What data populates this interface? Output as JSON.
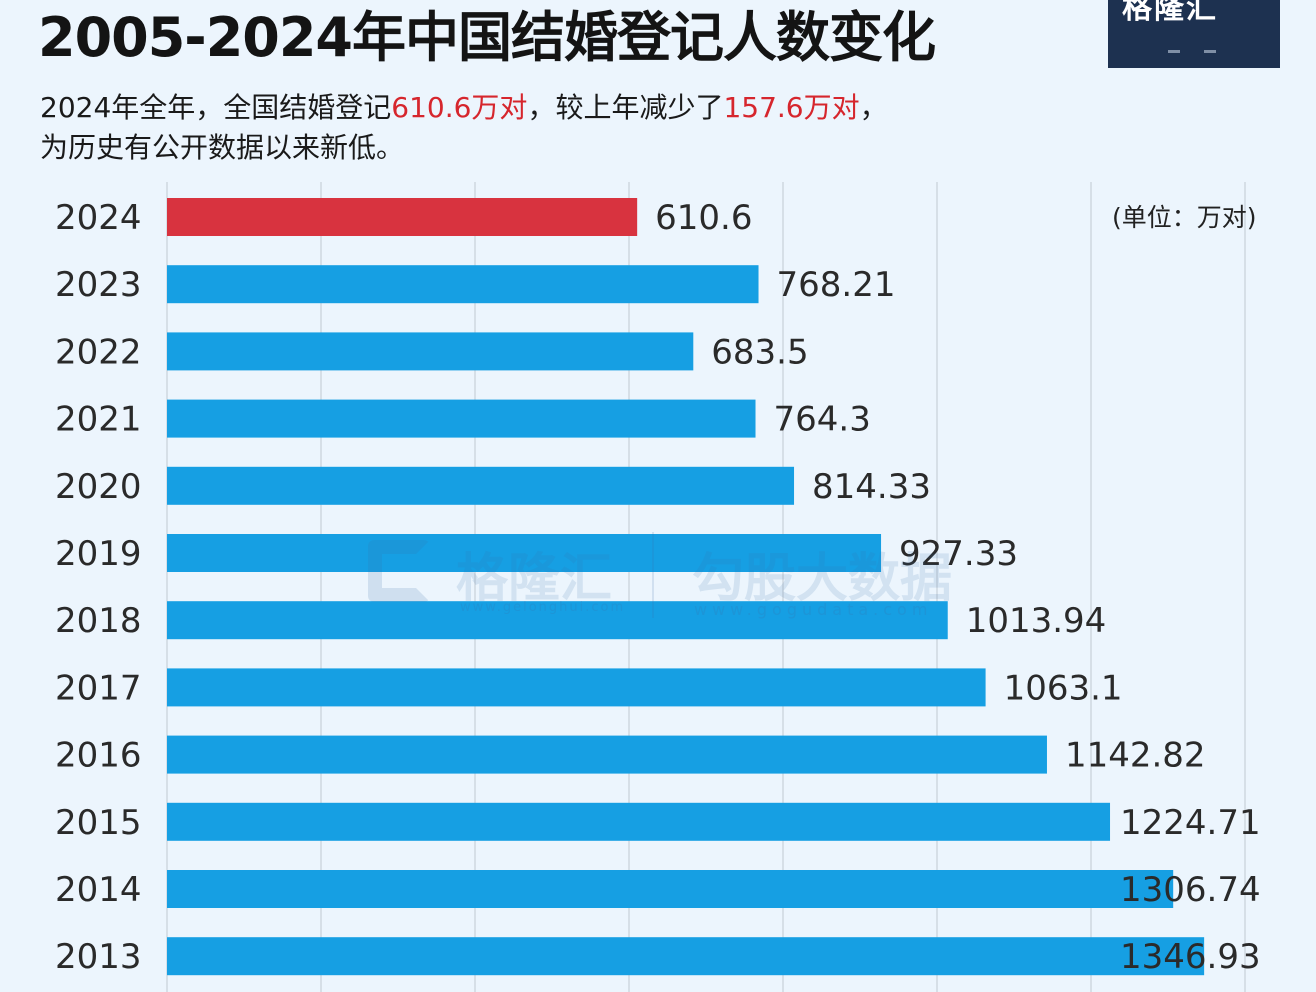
{
  "header": {
    "title": "2005-2024年中国结婚登记人数变化",
    "subtitle": {
      "line1_part1": "2024年全年，全国结婚登记",
      "line1_highlight1": "610.6万对",
      "line1_part2": "，较上年减少了",
      "line1_highlight2": "157.6万对",
      "line1_part3": "，",
      "line2": "为历史有公开数据以来新低。"
    },
    "unit": "(单位：万对)"
  },
  "logo": {
    "text": "格隆汇"
  },
  "watermark": {
    "brand": "格隆汇",
    "brand_url": "www.gelonghui.com",
    "product": "勾股大数据",
    "product_url": "www.gogudata.com"
  },
  "colors": {
    "highlight_bar": "#d8333f",
    "normal_bar": "#169fe3",
    "highlight_text": "#d6262d",
    "background": "#ecf5fd"
  },
  "chart_data": {
    "type": "bar",
    "orientation": "horizontal",
    "unit": "万对",
    "categories": [
      "2024",
      "2023",
      "2022",
      "2021",
      "2020",
      "2019",
      "2018",
      "2017",
      "2016",
      "2015",
      "2014",
      "2013"
    ],
    "values": [
      610.6,
      768.21,
      683.5,
      764.3,
      814.33,
      927.33,
      1013.94,
      1063.1,
      1142.82,
      1224.71,
      1306.74,
      1346.93
    ],
    "value_labels": [
      "610.6",
      "768.21",
      "683.5",
      "764.3",
      "814.33",
      "927.33",
      "1013.94",
      "1063.1",
      "1142.82",
      "1224.71",
      "1306.74",
      "1346.93"
    ],
    "highlight_index": 0,
    "xlim": [
      0,
      1400
    ],
    "grid": true
  }
}
